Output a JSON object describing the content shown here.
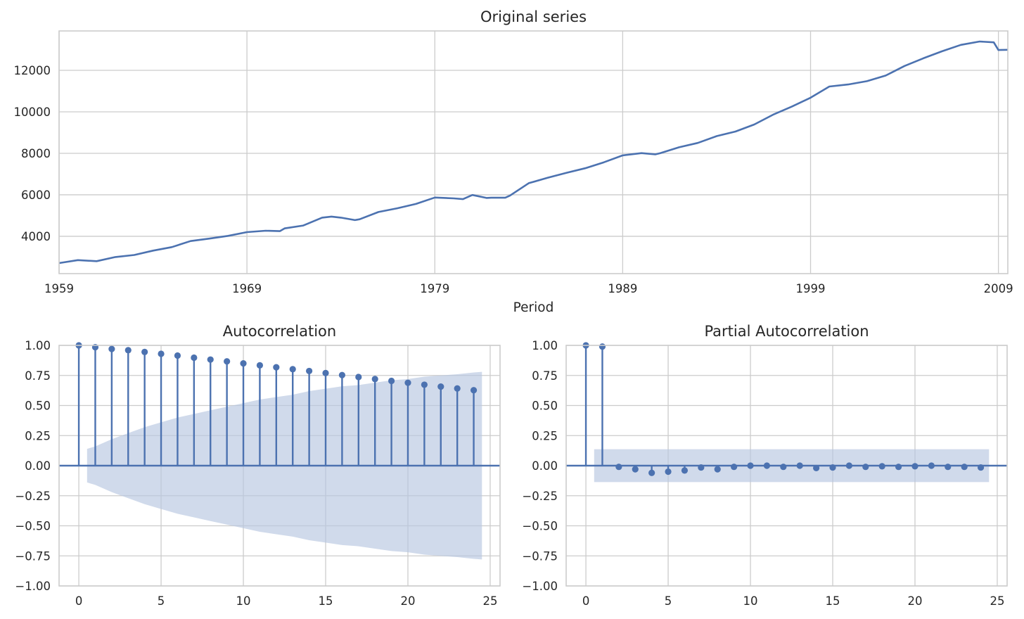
{
  "colors": {
    "series": "#4c72b0",
    "band": "#b7c6e0",
    "grid": "#cccccc",
    "text": "#262626"
  },
  "chart_data": [
    {
      "type": "line",
      "title": "Original series",
      "xlabel": "Period",
      "ylabel": "",
      "xlim": [
        1959.0,
        2009.5
      ],
      "ylim": [
        2200,
        13900
      ],
      "xticks": [
        1959,
        1969,
        1979,
        1989,
        1999,
        2009
      ],
      "xticklabels": [
        "1959",
        "1969",
        "1979",
        "1989",
        "1999",
        "2009"
      ],
      "yticks": [
        4000,
        6000,
        8000,
        10000,
        12000
      ],
      "yticklabels": [
        "4000",
        "6000",
        "8000",
        "10000",
        "12000"
      ],
      "grid": true,
      "series": [
        {
          "x": [
            1959.0,
            1960.0,
            1961.0,
            1962.0,
            1963.0,
            1964.0,
            1965.0,
            1966.0,
            1967.0,
            1968.0,
            1969.0,
            1970.0,
            1970.75,
            1971.0,
            1972.0,
            1973.0,
            1973.5,
            1974.0,
            1974.75,
            1975.0,
            1976.0,
            1977.0,
            1978.0,
            1979.0,
            1980.0,
            1980.5,
            1981.0,
            1981.75,
            1982.0,
            1982.75,
            1983.0,
            1984.0,
            1985.0,
            1986.0,
            1987.0,
            1988.0,
            1989.0,
            1990.0,
            1990.75,
            1991.0,
            1992.0,
            1993.0,
            1994.0,
            1995.0,
            1996.0,
            1997.0,
            1998.0,
            1999.0,
            2000.0,
            2001.0,
            2002.0,
            2003.0,
            2004.0,
            2005.0,
            2006.0,
            2007.0,
            2008.0,
            2008.75,
            2009.0,
            2009.5
          ],
          "y": [
            2710,
            2850,
            2800,
            3000,
            3100,
            3310,
            3480,
            3770,
            3890,
            4020,
            4200,
            4270,
            4250,
            4380,
            4520,
            4900,
            4950,
            4900,
            4780,
            4820,
            5170,
            5350,
            5560,
            5870,
            5830,
            5790,
            5990,
            5850,
            5860,
            5860,
            5960,
            6560,
            6820,
            7060,
            7280,
            7570,
            7900,
            8010,
            7950,
            8010,
            8290,
            8500,
            8830,
            9050,
            9390,
            9860,
            10250,
            10680,
            11220,
            11320,
            11480,
            11750,
            12210,
            12580,
            12920,
            13230,
            13390,
            13350,
            12980,
            12990
          ]
        }
      ]
    },
    {
      "type": "scatter",
      "title": "Autocorrelation",
      "xlim": [
        -1.2,
        25.6
      ],
      "ylim": [
        -1.0,
        1.0
      ],
      "xticks": [
        0,
        5,
        10,
        15,
        20,
        25
      ],
      "xticklabels": [
        "0",
        "5",
        "10",
        "15",
        "20",
        "25"
      ],
      "yticks": [
        1.0,
        0.75,
        0.5,
        0.25,
        0.0,
        -0.25,
        -0.5,
        -0.75,
        -1.0
      ],
      "yticklabels": [
        "1.00",
        "0.75",
        "0.50",
        "0.25",
        "0.00",
        "−0.25",
        "−0.50",
        "−0.75",
        "−1.00"
      ],
      "grid": true,
      "lags": [
        0,
        1,
        2,
        3,
        4,
        5,
        6,
        7,
        8,
        9,
        10,
        11,
        12,
        13,
        14,
        15,
        16,
        17,
        18,
        19,
        20,
        21,
        22,
        23,
        24
      ],
      "values": [
        1.0,
        0.985,
        0.97,
        0.96,
        0.945,
        0.93,
        0.915,
        0.898,
        0.882,
        0.867,
        0.85,
        0.834,
        0.818,
        0.802,
        0.787,
        0.77,
        0.753,
        0.737,
        0.72,
        0.705,
        0.689,
        0.673,
        0.657,
        0.642,
        0.627
      ],
      "confint": {
        "lags": [
          0.5,
          1,
          2,
          3,
          4,
          5,
          6,
          7,
          8,
          9,
          10,
          11,
          12,
          13,
          14,
          15,
          16,
          17,
          18,
          19,
          20,
          21,
          22,
          23,
          24,
          24.5
        ],
        "upper": [
          0.14,
          0.16,
          0.22,
          0.27,
          0.32,
          0.36,
          0.4,
          0.43,
          0.46,
          0.49,
          0.52,
          0.55,
          0.57,
          0.59,
          0.62,
          0.64,
          0.66,
          0.67,
          0.69,
          0.71,
          0.72,
          0.74,
          0.75,
          0.76,
          0.775,
          0.78
        ]
      }
    },
    {
      "type": "scatter",
      "title": "Partial Autocorrelation",
      "xlim": [
        -1.2,
        25.6
      ],
      "ylim": [
        -1.0,
        1.0
      ],
      "xticks": [
        0,
        5,
        10,
        15,
        20,
        25
      ],
      "xticklabels": [
        "0",
        "5",
        "10",
        "15",
        "20",
        "25"
      ],
      "yticks": [
        1.0,
        0.75,
        0.5,
        0.25,
        0.0,
        -0.25,
        -0.5,
        -0.75,
        -1.0
      ],
      "yticklabels": [
        "1.00",
        "0.75",
        "0.50",
        "0.25",
        "0.00",
        "−0.25",
        "−0.50",
        "−0.75",
        "−1.00"
      ],
      "grid": true,
      "lags": [
        0,
        1,
        2,
        3,
        4,
        5,
        6,
        7,
        8,
        9,
        10,
        11,
        12,
        13,
        14,
        15,
        16,
        17,
        18,
        19,
        20,
        21,
        22,
        23,
        24
      ],
      "values": [
        1.0,
        0.99,
        -0.01,
        -0.03,
        -0.06,
        -0.05,
        -0.04,
        -0.015,
        -0.03,
        -0.01,
        0.0,
        0.0,
        -0.01,
        0.0,
        -0.02,
        -0.015,
        0.0,
        -0.01,
        -0.005,
        -0.01,
        -0.005,
        0.0,
        -0.01,
        -0.01,
        -0.015
      ],
      "confint": {
        "lags": [
          0.5,
          24.5
        ],
        "upper": [
          0.137,
          0.137
        ]
      }
    }
  ]
}
